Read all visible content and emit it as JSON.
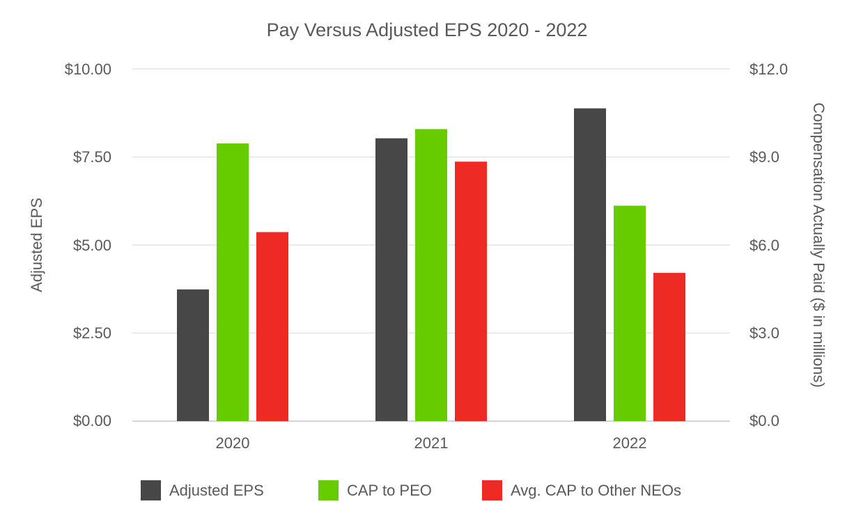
{
  "chart_data": {
    "type": "bar",
    "title": "Pay Versus Adjusted EPS 2020 - 2022",
    "categories": [
      "2020",
      "2021",
      "2022"
    ],
    "ylabel": "Adjusted EPS",
    "y2label": "Compensation Actually Paid ($ in millions)",
    "ylim": [
      0,
      10
    ],
    "y2lim": [
      0,
      12
    ],
    "yticks": [
      "$0.00",
      "$2.50",
      "$5.00",
      "$7.50",
      "$10.00"
    ],
    "y2ticks": [
      "$0.0",
      "$3.0",
      "$6.0",
      "$9.0",
      "$12.0"
    ],
    "grid": true,
    "legend_position": "bottom",
    "series": [
      {
        "name": "Adjusted EPS",
        "axis": "left",
        "color": "#474747",
        "values": [
          3.74,
          8.03,
          8.88
        ]
      },
      {
        "name": "CAP to PEO",
        "axis": "right",
        "color": "#66cc00",
        "values": [
          9.46,
          9.95,
          7.34
        ]
      },
      {
        "name": "Avg. CAP to Other NEOs",
        "axis": "right",
        "color": "#ee2a24",
        "values": [
          6.44,
          8.84,
          5.05
        ]
      }
    ]
  }
}
